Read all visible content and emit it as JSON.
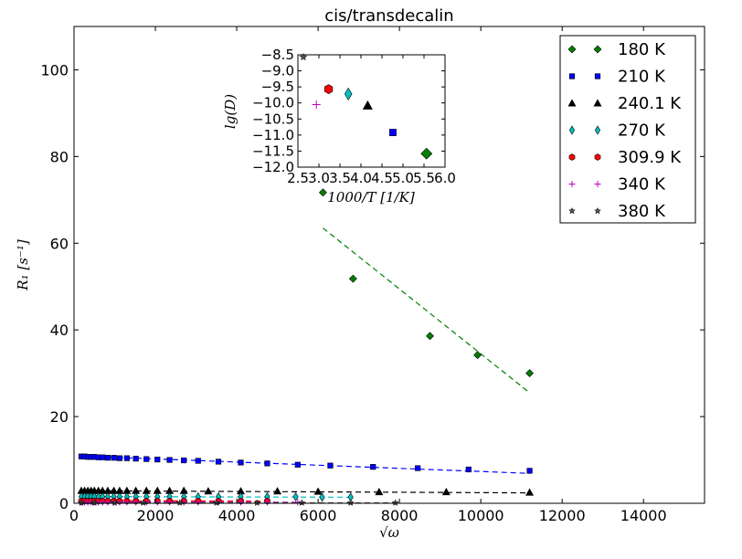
{
  "chart_data": [
    {
      "type": "scatter",
      "title": "cis/transdecalin",
      "xlabel": "√ω",
      "ylabel": "R₁ [s⁻¹]",
      "xlim": [
        0,
        15500
      ],
      "ylim": [
        0,
        110
      ],
      "xticks": [
        0,
        2000,
        4000,
        6000,
        8000,
        10000,
        12000,
        14000
      ],
      "yticks": [
        0,
        20,
        40,
        60,
        80,
        100
      ],
      "legend_position": "top-right",
      "series": [
        {
          "name": "180 K",
          "marker": "diamond",
          "color": "#008000",
          "x": [
            6120,
            6860,
            8750,
            9920,
            11200
          ],
          "y": [
            71.7,
            51.8,
            38.6,
            34.2,
            30.0
          ],
          "fit": {
            "x": [
              6120,
              11200
            ],
            "y": [
              63.5,
              25.5
            ]
          }
        },
        {
          "name": "210 K",
          "marker": "square",
          "color": "#0000ff",
          "x": [
            180,
            260,
            340,
            420,
            500,
            600,
            700,
            830,
            980,
            1120,
            1300,
            1520,
            1780,
            2050,
            2350,
            2700,
            3050,
            3550,
            4100,
            4750,
            5500,
            6300,
            7350,
            8450,
            9700,
            11200
          ],
          "y": [
            10.8,
            10.8,
            10.7,
            10.7,
            10.7,
            10.6,
            10.6,
            10.5,
            10.5,
            10.4,
            10.4,
            10.3,
            10.2,
            10.1,
            10.0,
            9.9,
            9.8,
            9.6,
            9.4,
            9.2,
            8.9,
            8.7,
            8.4,
            8.1,
            7.8,
            7.5
          ],
          "fit": {
            "x": [
              180,
              11200
            ],
            "y": [
              10.9,
              6.9
            ]
          }
        },
        {
          "name": "240.1 K",
          "marker": "triangle",
          "color": "#000000",
          "x": [
            180,
            260,
            340,
            420,
            500,
            600,
            700,
            830,
            980,
            1120,
            1300,
            1520,
            1780,
            2050,
            2350,
            2700,
            3300,
            4100,
            5000,
            6000,
            7500,
            9150,
            11200
          ],
          "y": [
            2.9,
            2.9,
            2.9,
            2.9,
            2.9,
            2.9,
            2.9,
            2.9,
            2.9,
            2.9,
            2.9,
            2.9,
            2.9,
            2.9,
            2.9,
            2.9,
            2.8,
            2.8,
            2.8,
            2.7,
            2.6,
            2.6,
            2.5
          ],
          "fit": {
            "x": [
              180,
              11200
            ],
            "y": [
              2.9,
              2.4
            ]
          }
        },
        {
          "name": "270 K",
          "marker": "thin_diamond",
          "color": "#00bfbf",
          "x": [
            180,
            260,
            340,
            420,
            500,
            600,
            700,
            830,
            980,
            1120,
            1300,
            1520,
            1780,
            2050,
            2350,
            2700,
            3050,
            3550,
            4100,
            4750,
            5450,
            6100,
            6800
          ],
          "y": [
            1.5,
            1.5,
            1.5,
            1.5,
            1.5,
            1.5,
            1.5,
            1.5,
            1.5,
            1.5,
            1.5,
            1.5,
            1.5,
            1.5,
            1.5,
            1.5,
            1.5,
            1.5,
            1.5,
            1.5,
            1.5,
            1.4,
            1.4
          ],
          "fit": {
            "x": [
              180,
              6800
            ],
            "y": [
              1.55,
              1.4
            ]
          }
        },
        {
          "name": "309.9 K",
          "marker": "hexagon",
          "color": "#ff0000",
          "x": [
            180,
            260,
            340,
            420,
            500,
            600,
            700,
            830,
            980,
            1120,
            1300,
            1520,
            1780,
            2050,
            2350,
            2700,
            3050,
            3550,
            4100,
            4750
          ],
          "y": [
            0.5,
            0.5,
            0.5,
            0.5,
            0.5,
            0.5,
            0.5,
            0.5,
            0.5,
            0.5,
            0.5,
            0.5,
            0.5,
            0.5,
            0.5,
            0.5,
            0.5,
            0.5,
            0.5,
            0.5
          ],
          "fit": {
            "x": [
              180,
              4750
            ],
            "y": [
              0.6,
              0.5
            ]
          }
        },
        {
          "name": "340 K",
          "marker": "plus",
          "color": "#bf00bf",
          "x": [
            180,
            260,
            340,
            420,
            500,
            600,
            700,
            830,
            980,
            1120,
            1300,
            1520,
            1780,
            2050,
            2350,
            2700,
            3050,
            3550,
            4100,
            4750,
            5500
          ],
          "y": [
            0.25,
            0.25,
            0.25,
            0.25,
            0.25,
            0.25,
            0.25,
            0.25,
            0.25,
            0.25,
            0.25,
            0.25,
            0.25,
            0.25,
            0.25,
            0.25,
            0.25,
            0.25,
            0.25,
            0.25,
            0.25
          ],
          "fit": {
            "x": [
              180,
              5500
            ],
            "y": [
              0.3,
              0.25
            ]
          }
        },
        {
          "name": "380 K",
          "marker": "star",
          "color": "#555555",
          "x": [
            180,
            500,
            1000,
            1700,
            2600,
            3500,
            4500,
            5600,
            6800,
            7900
          ],
          "y": [
            0.1,
            0.1,
            0.1,
            0.1,
            0.1,
            0.1,
            0.1,
            0.1,
            0.1,
            0.1
          ],
          "fit": {
            "x": [
              180,
              7900
            ],
            "y": [
              0.1,
              0.1
            ]
          }
        }
      ]
    },
    {
      "type": "scatter",
      "title": "",
      "xlabel": "1000/T [1/K]",
      "ylabel": "lg(D)",
      "xlim": [
        2.5,
        6.0
      ],
      "ylim": [
        -12.0,
        -8.5
      ],
      "xtick_labels": [
        "2.5",
        "3.0",
        "3.5",
        "4.0",
        "4.5",
        "5.0",
        "5.5",
        "6.0"
      ],
      "ytick_labels": [
        "−8.5",
        "−9.0",
        "−9.5",
        "−10.0",
        "−10.5",
        "−11.0",
        "−11.5",
        "−12.0"
      ],
      "points": [
        {
          "x": 5.56,
          "y": -11.58,
          "marker": "diamond",
          "color": "#008000"
        },
        {
          "x": 4.76,
          "y": -10.92,
          "marker": "square",
          "color": "#0000ff"
        },
        {
          "x": 4.16,
          "y": -10.08,
          "marker": "triangle",
          "color": "#000000"
        },
        {
          "x": 3.7,
          "y": -9.72,
          "marker": "thin_diamond",
          "color": "#00bfbf"
        },
        {
          "x": 3.23,
          "y": -9.57,
          "marker": "hexagon",
          "color": "#ff0000"
        },
        {
          "x": 2.94,
          "y": -10.05,
          "marker": "plus",
          "color": "#bf00bf"
        },
        {
          "x": 2.63,
          "y": -8.57,
          "marker": "star",
          "color": "#555555"
        }
      ]
    }
  ]
}
